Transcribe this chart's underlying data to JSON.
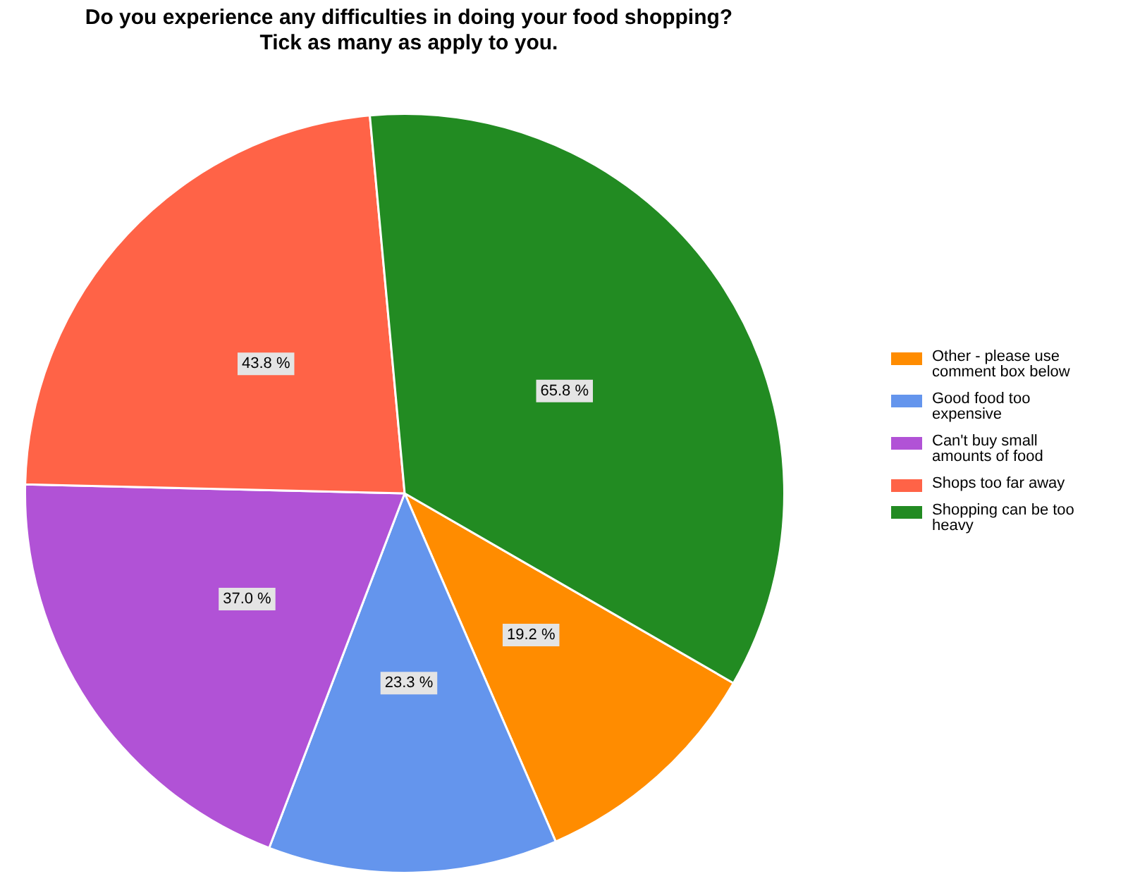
{
  "chart_data": {
    "type": "pie",
    "title": "Do you experience any difficulties in doing your food shopping?\nTick as many as apply to you.",
    "categories": [
      "Other - please use comment box below",
      "Good food too expensive",
      "Can't buy small amounts of food",
      "Shops too far away",
      "Shopping can be too heavy"
    ],
    "values": [
      19.2,
      23.3,
      37.0,
      43.8,
      65.8
    ],
    "colors": [
      "#ff8c00",
      "#6495ed",
      "#b152d6",
      "#ff6347",
      "#228b22"
    ],
    "value_labels": [
      "19.2 %",
      "23.3 %",
      "37.0 %",
      "43.8 %",
      "65.8 %"
    ],
    "legend": "right"
  }
}
